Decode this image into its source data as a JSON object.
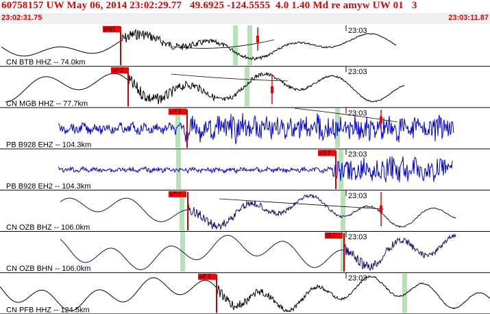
{
  "header": {
    "title": "60758157 UW May 06, 2014 23:02:29.77   49.6925 -124.5555  4.0 1.40 Md re amyw UW 01   3",
    "time_start": "23:02:31.75",
    "time_end": "23:03:11.87",
    "color_red": "#e00000",
    "color_pick_box": "#ff0000"
  },
  "traces": [
    {
      "label": "CN BTB HHZ -- 74.0km",
      "pick": "iPd1",
      "time_mark": "23:03",
      "color": "#000000"
    },
    {
      "label": "CN MGB HHZ -- 77.7km",
      "pick": "eP 2",
      "time_mark": "23:03",
      "color": "#000000"
    },
    {
      "label": "PB B928 EHZ -- 104.3km",
      "pick": "eP 2",
      "time_mark": "23:03",
      "color": "#0000dd"
    },
    {
      "label": "PB B928 EH2 -- 104.3km",
      "pick": "eS 2",
      "time_mark": "23:03",
      "color": "#0000dd"
    },
    {
      "label": "CN OZB BHZ -- 106.0km",
      "pick": "eP 2",
      "time_mark": "23:03",
      "color": "#1a0a6e"
    },
    {
      "label": "CN OZB BHN -- 106.0km",
      "pick": "iS 1",
      "time_mark": "23:03",
      "color": "#1a0a6e"
    },
    {
      "label": "CN PFB HHZ -- 124.5km",
      "pick": "eP 2",
      "time_mark": "23:03",
      "color": "#000000"
    }
  ]
}
